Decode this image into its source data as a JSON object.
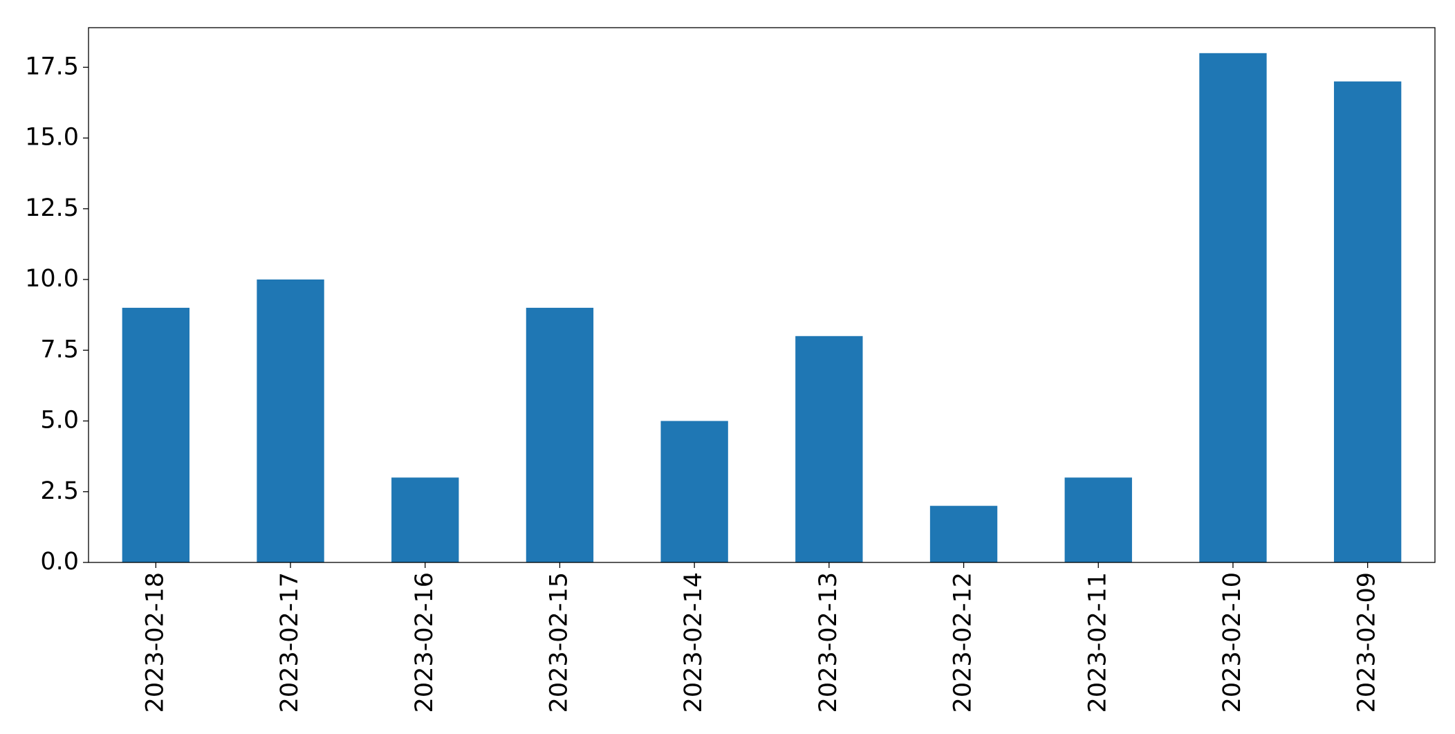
{
  "chart_data": {
    "type": "bar",
    "categories": [
      "2023-02-18",
      "2023-02-17",
      "2023-02-16",
      "2023-02-15",
      "2023-02-14",
      "2023-02-13",
      "2023-02-12",
      "2023-02-11",
      "2023-02-10",
      "2023-02-09"
    ],
    "values": [
      9,
      10,
      3,
      9,
      5,
      8,
      2,
      3,
      18,
      17
    ],
    "color": "#1f77b4",
    "ylim": [
      0,
      18.9
    ],
    "yticks": [
      {
        "value": 0,
        "label": "0.0"
      },
      {
        "value": 2.5,
        "label": "2.5"
      },
      {
        "value": 5,
        "label": "5.0"
      },
      {
        "value": 7.5,
        "label": "7.5"
      },
      {
        "value": 10,
        "label": "10.0"
      },
      {
        "value": 12.5,
        "label": "12.5"
      },
      {
        "value": 15,
        "label": "15.0"
      },
      {
        "value": 17.5,
        "label": "17.5"
      }
    ],
    "grid": false
  }
}
